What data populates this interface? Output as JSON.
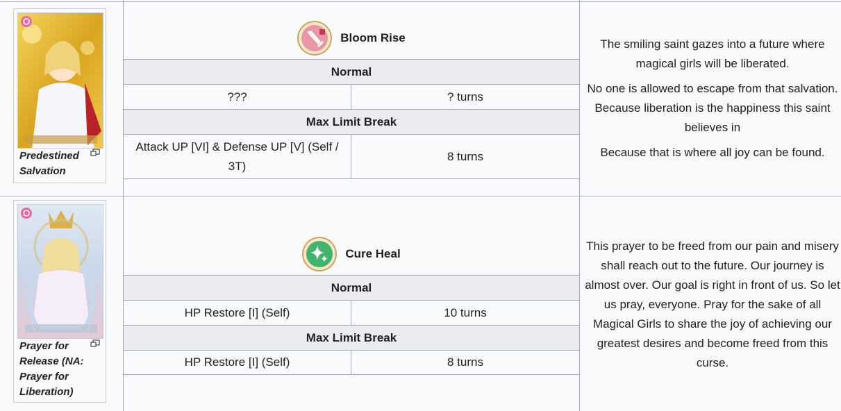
{
  "cards": [
    {
      "caption": "Predestined Salvation",
      "skill": {
        "name": "Bloom Rise",
        "icon": "sword-icon",
        "icon_color": "#e8a0a8",
        "normal_label": "Normal",
        "normal": {
          "effect": "???",
          "duration": "? turns"
        },
        "mlb_label": "Max Limit Break",
        "mlb": {
          "effect": "Attack UP [VI] & Defense UP [V] (Self / 3T)",
          "duration": "8 turns"
        }
      },
      "description": [
        "The smiling saint gazes into a future where magical girls will be liberated.",
        "No one is allowed to escape from that salvation. Because liberation is the happiness this saint believes in",
        "Because that is where all joy can be found."
      ]
    },
    {
      "caption": "Prayer for Release (NA: Prayer for Liberation)",
      "skill": {
        "name": "Cure Heal",
        "icon": "sparkle-icon",
        "icon_color": "#3fb46b",
        "normal_label": "Normal",
        "normal": {
          "effect": "HP Restore [I] (Self)",
          "duration": "10 turns"
        },
        "mlb_label": "Max Limit Break",
        "mlb": {
          "effect": "HP Restore [I] (Self)",
          "duration": "8 turns"
        }
      },
      "description": [
        "This prayer to be freed from our pain and misery shall reach out to the future. Our journey is almost over. Our goal is right in front of us. So let us pray, everyone. Pray for the sake of all Magical Girls to share the joy of achieving our greatest desires and become freed from this curse."
      ]
    }
  ]
}
